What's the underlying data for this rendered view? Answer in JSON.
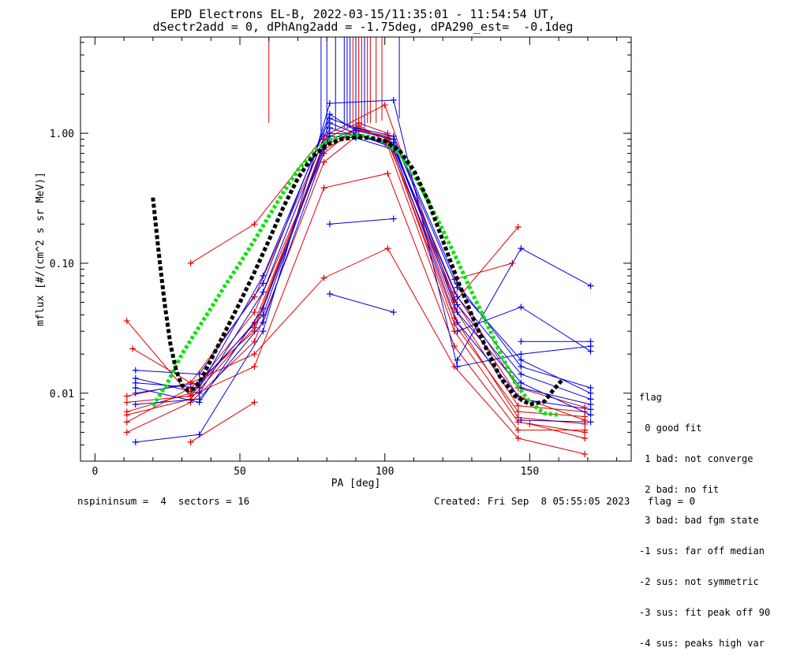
{
  "title": {
    "line1": "EPD Electrons EL-B, 2022-03-15/11:35:01 - 11:54:54 UT,",
    "line2": "dSectr2add = 0, dPhAng2add = -1.75deg, dPA290_est=  -0.1deg"
  },
  "legend": {
    "title": "flag",
    "items": [
      " 0 good fit",
      " 1 bad: not converge",
      " 2 bad: no fit",
      " 3 bad: bad fgm state",
      "-1 sus: far off median",
      "-2 sus: not symmetric",
      "-3 sus: fit peak off 90",
      "-4 sus: peaks high var"
    ]
  },
  "footer": {
    "left": "nspininsum =  4  sectors = 16",
    "right": "Created: Fri Sep  8 05:55:05 2023   flag = 0"
  },
  "colors": {
    "red": "#e00000",
    "blue": "#0000e6",
    "green": "#00e600",
    "black": "#000000"
  },
  "chart_data": {
    "type": "line",
    "title": "EPD Electrons EL-B, 2022-03-15/11:35:01 - 11:54:54 UT, dSectr2add = 0, dPhAng2add = -1.75deg, dPA290_est=  -0.1deg",
    "xlabel": "PA [deg]",
    "ylabel": "mflux [#/(cm^2 s sr MeV)]",
    "xlim": [
      -5,
      185
    ],
    "ylim": [
      0.003,
      5.5
    ],
    "yscale": "log",
    "xticks": [
      0,
      50,
      100,
      150
    ],
    "xtick_labels": [
      "0",
      "50",
      "100",
      "150"
    ],
    "yticks": [
      0.01,
      0.1,
      1.0
    ],
    "ytick_labels": [
      "0.01",
      "0.10",
      "1.00"
    ],
    "series": [
      {
        "color": "red",
        "marker": "+",
        "x": [
          11,
          33,
          55,
          79,
          91,
          101,
          124,
          146,
          169
        ],
        "y": [
          0.0085,
          0.0095,
          0.035,
          0.75,
          1.05,
          0.95,
          0.045,
          0.008,
          0.0072
        ]
      },
      {
        "color": "red",
        "marker": "+",
        "x": [
          11,
          33,
          55,
          79,
          91,
          101,
          124,
          146,
          169
        ],
        "y": [
          0.006,
          0.011,
          0.03,
          0.85,
          1.1,
          0.9,
          0.038,
          0.0065,
          0.0058
        ]
      },
      {
        "color": "red",
        "marker": "+",
        "x": [
          11,
          33,
          55,
          79,
          91,
          101,
          124,
          146,
          169
        ],
        "y": [
          0.0072,
          0.01,
          0.042,
          0.7,
          1.15,
          0.85,
          0.052,
          0.0095,
          0.0062
        ]
      },
      {
        "color": "red",
        "marker": "+",
        "x": [
          11,
          33,
          55,
          79,
          91,
          101,
          124,
          146,
          169
        ],
        "y": [
          0.005,
          0.0085,
          0.025,
          0.6,
          0.98,
          0.8,
          0.03,
          0.006,
          0.005
        ]
      },
      {
        "color": "red",
        "marker": "+",
        "x": [
          11,
          33,
          55,
          79,
          91,
          101,
          124,
          146,
          169
        ],
        "y": [
          0.0095,
          0.012,
          0.055,
          0.9,
          1.2,
          1.0,
          0.06,
          0.011,
          0.0078
        ]
      },
      {
        "color": "red",
        "marker": "+",
        "x": [
          11,
          33,
          55,
          79,
          91,
          101,
          124,
          146,
          169
        ],
        "y": [
          0.0068,
          0.009,
          0.032,
          0.8,
          1.08,
          0.92,
          0.034,
          0.0072,
          0.0066
        ]
      },
      {
        "color": "red",
        "marker": "+",
        "x": [
          11,
          33,
          55,
          79,
          101,
          124,
          146,
          169
        ],
        "y": [
          0.036,
          0.0095,
          0.016,
          0.38,
          0.49,
          0.023,
          0.0052,
          0.0052
        ]
      },
      {
        "color": "red",
        "marker": "+",
        "x": [
          13,
          33,
          55,
          79,
          101,
          124,
          146,
          169
        ],
        "y": [
          0.022,
          0.012,
          0.02,
          0.077,
          0.13,
          0.016,
          0.0045,
          0.0034
        ]
      },
      {
        "color": "red",
        "marker": "+",
        "x": [
          33,
          55,
          79,
          100,
          124,
          146
        ],
        "y": [
          0.1,
          0.2,
          0.95,
          1.65,
          0.05,
          0.19
        ]
      },
      {
        "color": "red",
        "marker": "+",
        "x": [
          33,
          55
        ],
        "y": [
          0.0042,
          0.0085
        ]
      },
      {
        "color": "red",
        "marker": "+",
        "x": [
          124,
          144
        ],
        "y": [
          0.075,
          0.1
        ]
      },
      {
        "color": "red",
        "marker": "+",
        "x": [
          150,
          169
        ],
        "y": [
          0.0058,
          0.0045
        ]
      },
      {
        "color": "blue",
        "marker": "+",
        "x": [
          14,
          36,
          58,
          81,
          90,
          103,
          125,
          147,
          171
        ],
        "y": [
          0.01,
          0.012,
          0.04,
          1.1,
          0.95,
          0.85,
          0.042,
          0.011,
          0.0082
        ]
      },
      {
        "color": "blue",
        "marker": "+",
        "x": [
          14,
          36,
          58,
          81,
          90,
          103,
          125,
          147,
          171
        ],
        "y": [
          0.013,
          0.01,
          0.06,
          1.2,
          1.0,
          0.8,
          0.055,
          0.014,
          0.009
        ]
      },
      {
        "color": "blue",
        "marker": "+",
        "x": [
          14,
          36,
          58,
          81,
          90,
          103,
          125,
          147,
          171
        ],
        "y": [
          0.0082,
          0.009,
          0.035,
          0.95,
          0.92,
          0.75,
          0.035,
          0.009,
          0.0075
        ]
      },
      {
        "color": "blue",
        "marker": "+",
        "x": [
          14,
          36,
          58,
          81,
          90,
          103,
          125,
          147,
          171
        ],
        "y": [
          0.015,
          0.014,
          0.07,
          1.4,
          1.05,
          0.9,
          0.065,
          0.018,
          0.01
        ]
      },
      {
        "color": "blue",
        "marker": "+",
        "x": [
          14,
          36,
          58,
          81,
          90,
          103,
          125,
          147,
          171
        ],
        "y": [
          0.011,
          0.0085,
          0.045,
          1.0,
          0.98,
          0.78,
          0.048,
          0.012,
          0.0068
        ]
      },
      {
        "color": "blue",
        "marker": "+",
        "x": [
          14,
          36,
          58,
          81,
          90,
          103,
          125,
          147,
          171
        ],
        "y": [
          0.012,
          0.011,
          0.08,
          1.3,
          1.1,
          0.95,
          0.07,
          0.016,
          0.011
        ]
      },
      {
        "color": "blue",
        "marker": "+",
        "x": [
          14,
          36,
          58,
          81,
          103,
          125,
          147,
          171
        ],
        "y": [
          0.0042,
          0.0048,
          0.03,
          1.7,
          1.8,
          0.016,
          0.02,
          0.023
        ]
      },
      {
        "color": "blue",
        "marker": "+",
        "x": [
          81,
          103
        ],
        "y": [
          0.2,
          0.22
        ]
      },
      {
        "color": "blue",
        "marker": "+",
        "x": [
          81,
          103
        ],
        "y": [
          0.058,
          0.042
        ]
      },
      {
        "color": "blue",
        "marker": "+",
        "x": [
          125,
          147,
          171
        ],
        "y": [
          0.018,
          0.13,
          0.067
        ]
      },
      {
        "color": "blue",
        "marker": "+",
        "x": [
          125,
          147,
          171
        ],
        "y": [
          0.03,
          0.046,
          0.021
        ]
      },
      {
        "color": "blue",
        "marker": "+",
        "x": [
          147,
          171
        ],
        "y": [
          0.025,
          0.025
        ]
      },
      {
        "color": "blue",
        "marker": "+",
        "x": [
          147,
          171
        ],
        "y": [
          0.0062,
          0.006
        ]
      },
      {
        "color": "green",
        "style": "dotted",
        "x": [
          20,
          25,
          30,
          35,
          40,
          45,
          50,
          55,
          60,
          65,
          70,
          75,
          80,
          85,
          90,
          95,
          100,
          105,
          110,
          115,
          120,
          125,
          130,
          135,
          140,
          145,
          150,
          155,
          160
        ],
        "y": [
          0.008,
          0.012,
          0.02,
          0.03,
          0.045,
          0.068,
          0.1,
          0.15,
          0.23,
          0.35,
          0.52,
          0.7,
          0.87,
          0.95,
          0.97,
          0.94,
          0.86,
          0.7,
          0.48,
          0.3,
          0.18,
          0.105,
          0.06,
          0.035,
          0.02,
          0.012,
          0.0085,
          0.007,
          0.0068
        ]
      },
      {
        "color": "black",
        "style": "dashed",
        "x": [
          20,
          22,
          24,
          26,
          28,
          30,
          32,
          34,
          36,
          40,
          45,
          50,
          55,
          60,
          65,
          70,
          75,
          80,
          85,
          90,
          95,
          100,
          105,
          110,
          115,
          120,
          125,
          130,
          135,
          140,
          145,
          150,
          155,
          158,
          161
        ],
        "y": [
          0.32,
          0.12,
          0.05,
          0.024,
          0.015,
          0.0115,
          0.0105,
          0.0108,
          0.012,
          0.018,
          0.03,
          0.05,
          0.085,
          0.15,
          0.27,
          0.45,
          0.66,
          0.82,
          0.9,
          0.93,
          0.92,
          0.87,
          0.74,
          0.52,
          0.3,
          0.15,
          0.075,
          0.04,
          0.022,
          0.013,
          0.0095,
          0.0082,
          0.0086,
          0.0105,
          0.0125
        ]
      }
    ],
    "vertical_lines": [
      {
        "color": "red",
        "x": 60,
        "y_from": 1.2,
        "y_to": 5.5
      },
      {
        "color": "blue",
        "x": 78,
        "y_from": 0.95,
        "y_to": 5.5
      },
      {
        "color": "blue",
        "x": 80,
        "y_from": 1.0,
        "y_to": 5.5
      },
      {
        "color": "blue",
        "x": 83,
        "y_from": 1.05,
        "y_to": 5.5
      },
      {
        "color": "blue",
        "x": 86,
        "y_from": 1.1,
        "y_to": 5.5
      },
      {
        "color": "blue",
        "x": 87,
        "y_from": 1.1,
        "y_to": 5.5
      },
      {
        "color": "blue",
        "x": 88,
        "y_from": 1.1,
        "y_to": 5.5
      },
      {
        "color": "red",
        "x": 89,
        "y_from": 1.1,
        "y_to": 5.5
      },
      {
        "color": "blue",
        "x": 90,
        "y_from": 1.15,
        "y_to": 5.5
      },
      {
        "color": "red",
        "x": 91,
        "y_from": 1.15,
        "y_to": 5.5
      },
      {
        "color": "red",
        "x": 92,
        "y_from": 1.15,
        "y_to": 5.5
      },
      {
        "color": "blue",
        "x": 93,
        "y_from": 1.1,
        "y_to": 5.5
      },
      {
        "color": "red",
        "x": 94,
        "y_from": 1.2,
        "y_to": 5.5
      },
      {
        "color": "red",
        "x": 95,
        "y_from": 1.2,
        "y_to": 5.5
      },
      {
        "color": "red",
        "x": 97,
        "y_from": 1.2,
        "y_to": 5.5
      },
      {
        "color": "red",
        "x": 99,
        "y_from": 1.25,
        "y_to": 5.5
      },
      {
        "color": "blue",
        "x": 105,
        "y_from": 1.3,
        "y_to": 5.5
      }
    ]
  }
}
